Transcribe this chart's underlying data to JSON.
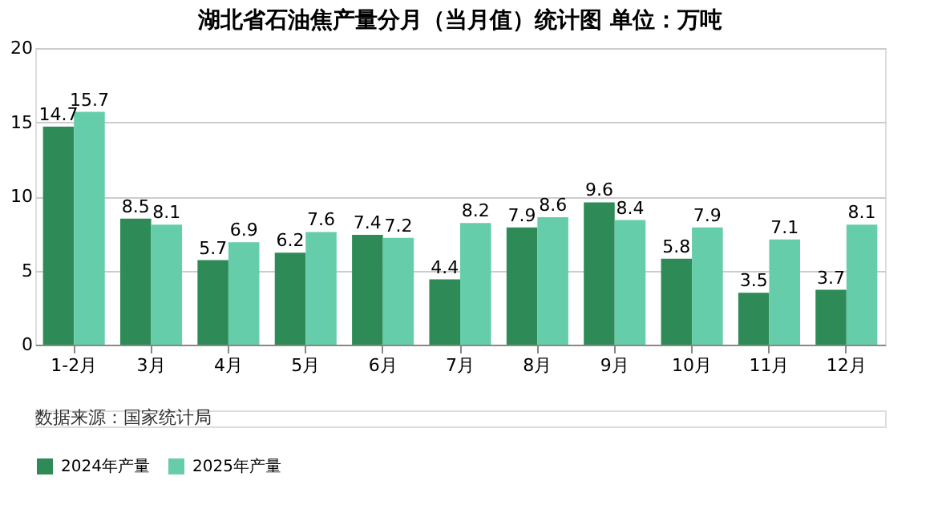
{
  "chart_data": {
    "type": "bar",
    "title": "湖北省石油焦产量分月（当月值）统计图 单位：万吨",
    "categories": [
      "1-2月",
      "3月",
      "4月",
      "5月",
      "6月",
      "7月",
      "8月",
      "9月",
      "10月",
      "11月",
      "12月"
    ],
    "series": [
      {
        "name": "2024年产量",
        "color": "#2e8b57",
        "values": [
          14.7,
          8.5,
          5.7,
          6.2,
          7.4,
          4.4,
          7.9,
          9.6,
          5.8,
          3.5,
          3.7
        ]
      },
      {
        "name": "2025年产量",
        "color": "#66cdaa",
        "values": [
          15.7,
          8.1,
          6.9,
          7.6,
          7.2,
          8.2,
          8.6,
          8.4,
          7.9,
          7.1,
          8.1
        ]
      }
    ],
    "ylim": [
      0,
      20
    ],
    "yticks": [
      0,
      5,
      10,
      15,
      20
    ],
    "grid": "y",
    "legend": "bottom",
    "data_labels": true,
    "annotations": [
      "数据来源：国家统计局"
    ]
  }
}
